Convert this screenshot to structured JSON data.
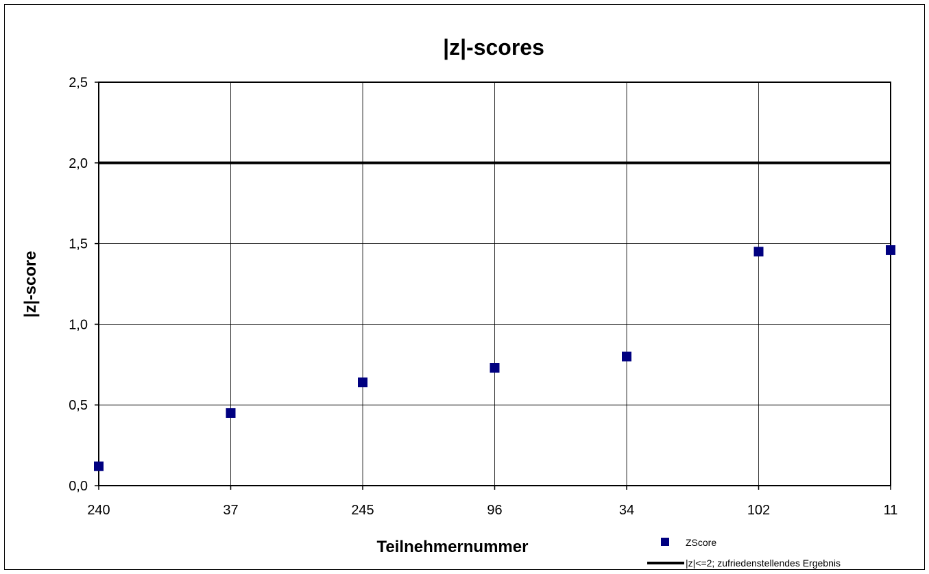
{
  "chart_data": {
    "type": "scatter",
    "title": "|z|-scores",
    "xlabel": "Teilnehmernummer",
    "ylabel": "|z|-score",
    "categories": [
      "240",
      "37",
      "245",
      "96",
      "34",
      "102",
      "11"
    ],
    "series": [
      {
        "name": "ZScore",
        "values": [
          0.12,
          0.45,
          0.64,
          0.73,
          0.8,
          1.45,
          1.46
        ],
        "color": "#000080",
        "marker": "square"
      }
    ],
    "reference_line": {
      "name": "|z|<=2; zufriedenstellendes Ergebnis",
      "value": 2.0,
      "color": "#000000"
    },
    "ylim": [
      0,
      2.5
    ],
    "yticks": [
      0,
      0.5,
      1.0,
      1.5,
      2.0,
      2.5
    ],
    "ytick_labels": [
      "0,0",
      "0,5",
      "1,0",
      "1,5",
      "2,0",
      "2,5"
    ],
    "grid": true,
    "legend_position": "bottom-right"
  }
}
